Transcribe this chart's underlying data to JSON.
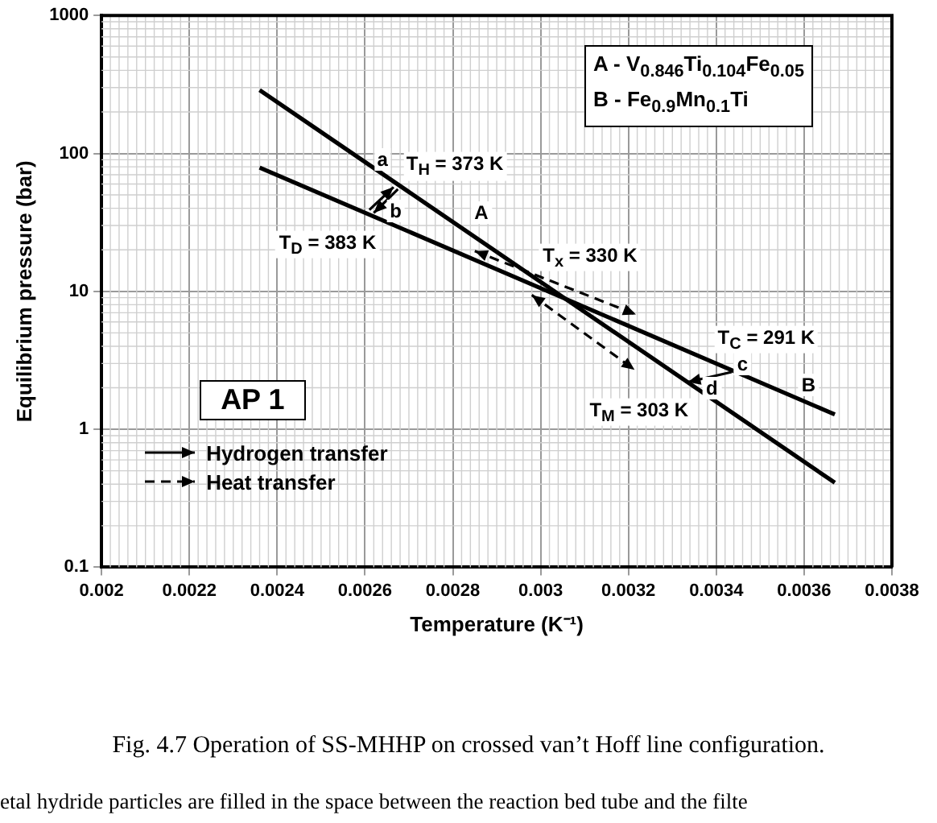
{
  "chart_data": {
    "type": "line",
    "xlabel": "Temperature (K⁻¹)",
    "ylabel": "Equilibrium pressure (bar)",
    "x": [
      0.00236,
      0.00367
    ],
    "series": [
      {
        "color": "#000000",
        "values": [
          288,
          0.41
        ]
      },
      {
        "color": "#000000",
        "values": [
          79,
          1.28
        ]
      }
    ],
    "xlim": [
      0.002,
      0.0038
    ],
    "xticks": [
      0.002,
      0.0022,
      0.0024,
      0.0026,
      0.0028,
      0.003,
      0.0032,
      0.0034,
      0.0036,
      0.0038
    ],
    "ylim": [
      0.1,
      1000
    ],
    "yticks": [
      0.1,
      1,
      10,
      100,
      1000
    ],
    "log": "y",
    "grid": true,
    "legend": false,
    "marker": "none",
    "line_style": "solid",
    "annotations": [
      "A - V$_{0.846}$Ti$_{0.104}$Fe$_{0.05}$",
      "B - Fe$_{0.9}$Mn$_{0.1}$Ti",
      "AP 1",
      "Hydrogen transfer",
      "Heat transfer",
      "T$_{H}$ = 373 K",
      "T$_{D}$ = 383 K",
      "T$_{x}$ = 330 K",
      "T$_{C}$ = 291 K",
      "T$_{M}$ = 303 K",
      "Fig. 4.7 Operation of SS-MHHP on crossed van’t Hoff line configuration.",
      "etal hydride particles are filled in the space between the reaction bed tube and the filte",
      {
        "text": "a",
        "x": 0.00264,
        "y": 90
      },
      {
        "text": "b",
        "x": 0.00267,
        "y": 38
      },
      {
        "text": "A",
        "x": 0.002865,
        "y": 37
      },
      {
        "text": "c",
        "x": 0.00346,
        "y": 3.0
      },
      {
        "text": "d",
        "x": 0.00339,
        "y": 2.0
      },
      {
        "text": "B",
        "x": 0.00361,
        "y": 2.1
      }
    ]
  }
}
